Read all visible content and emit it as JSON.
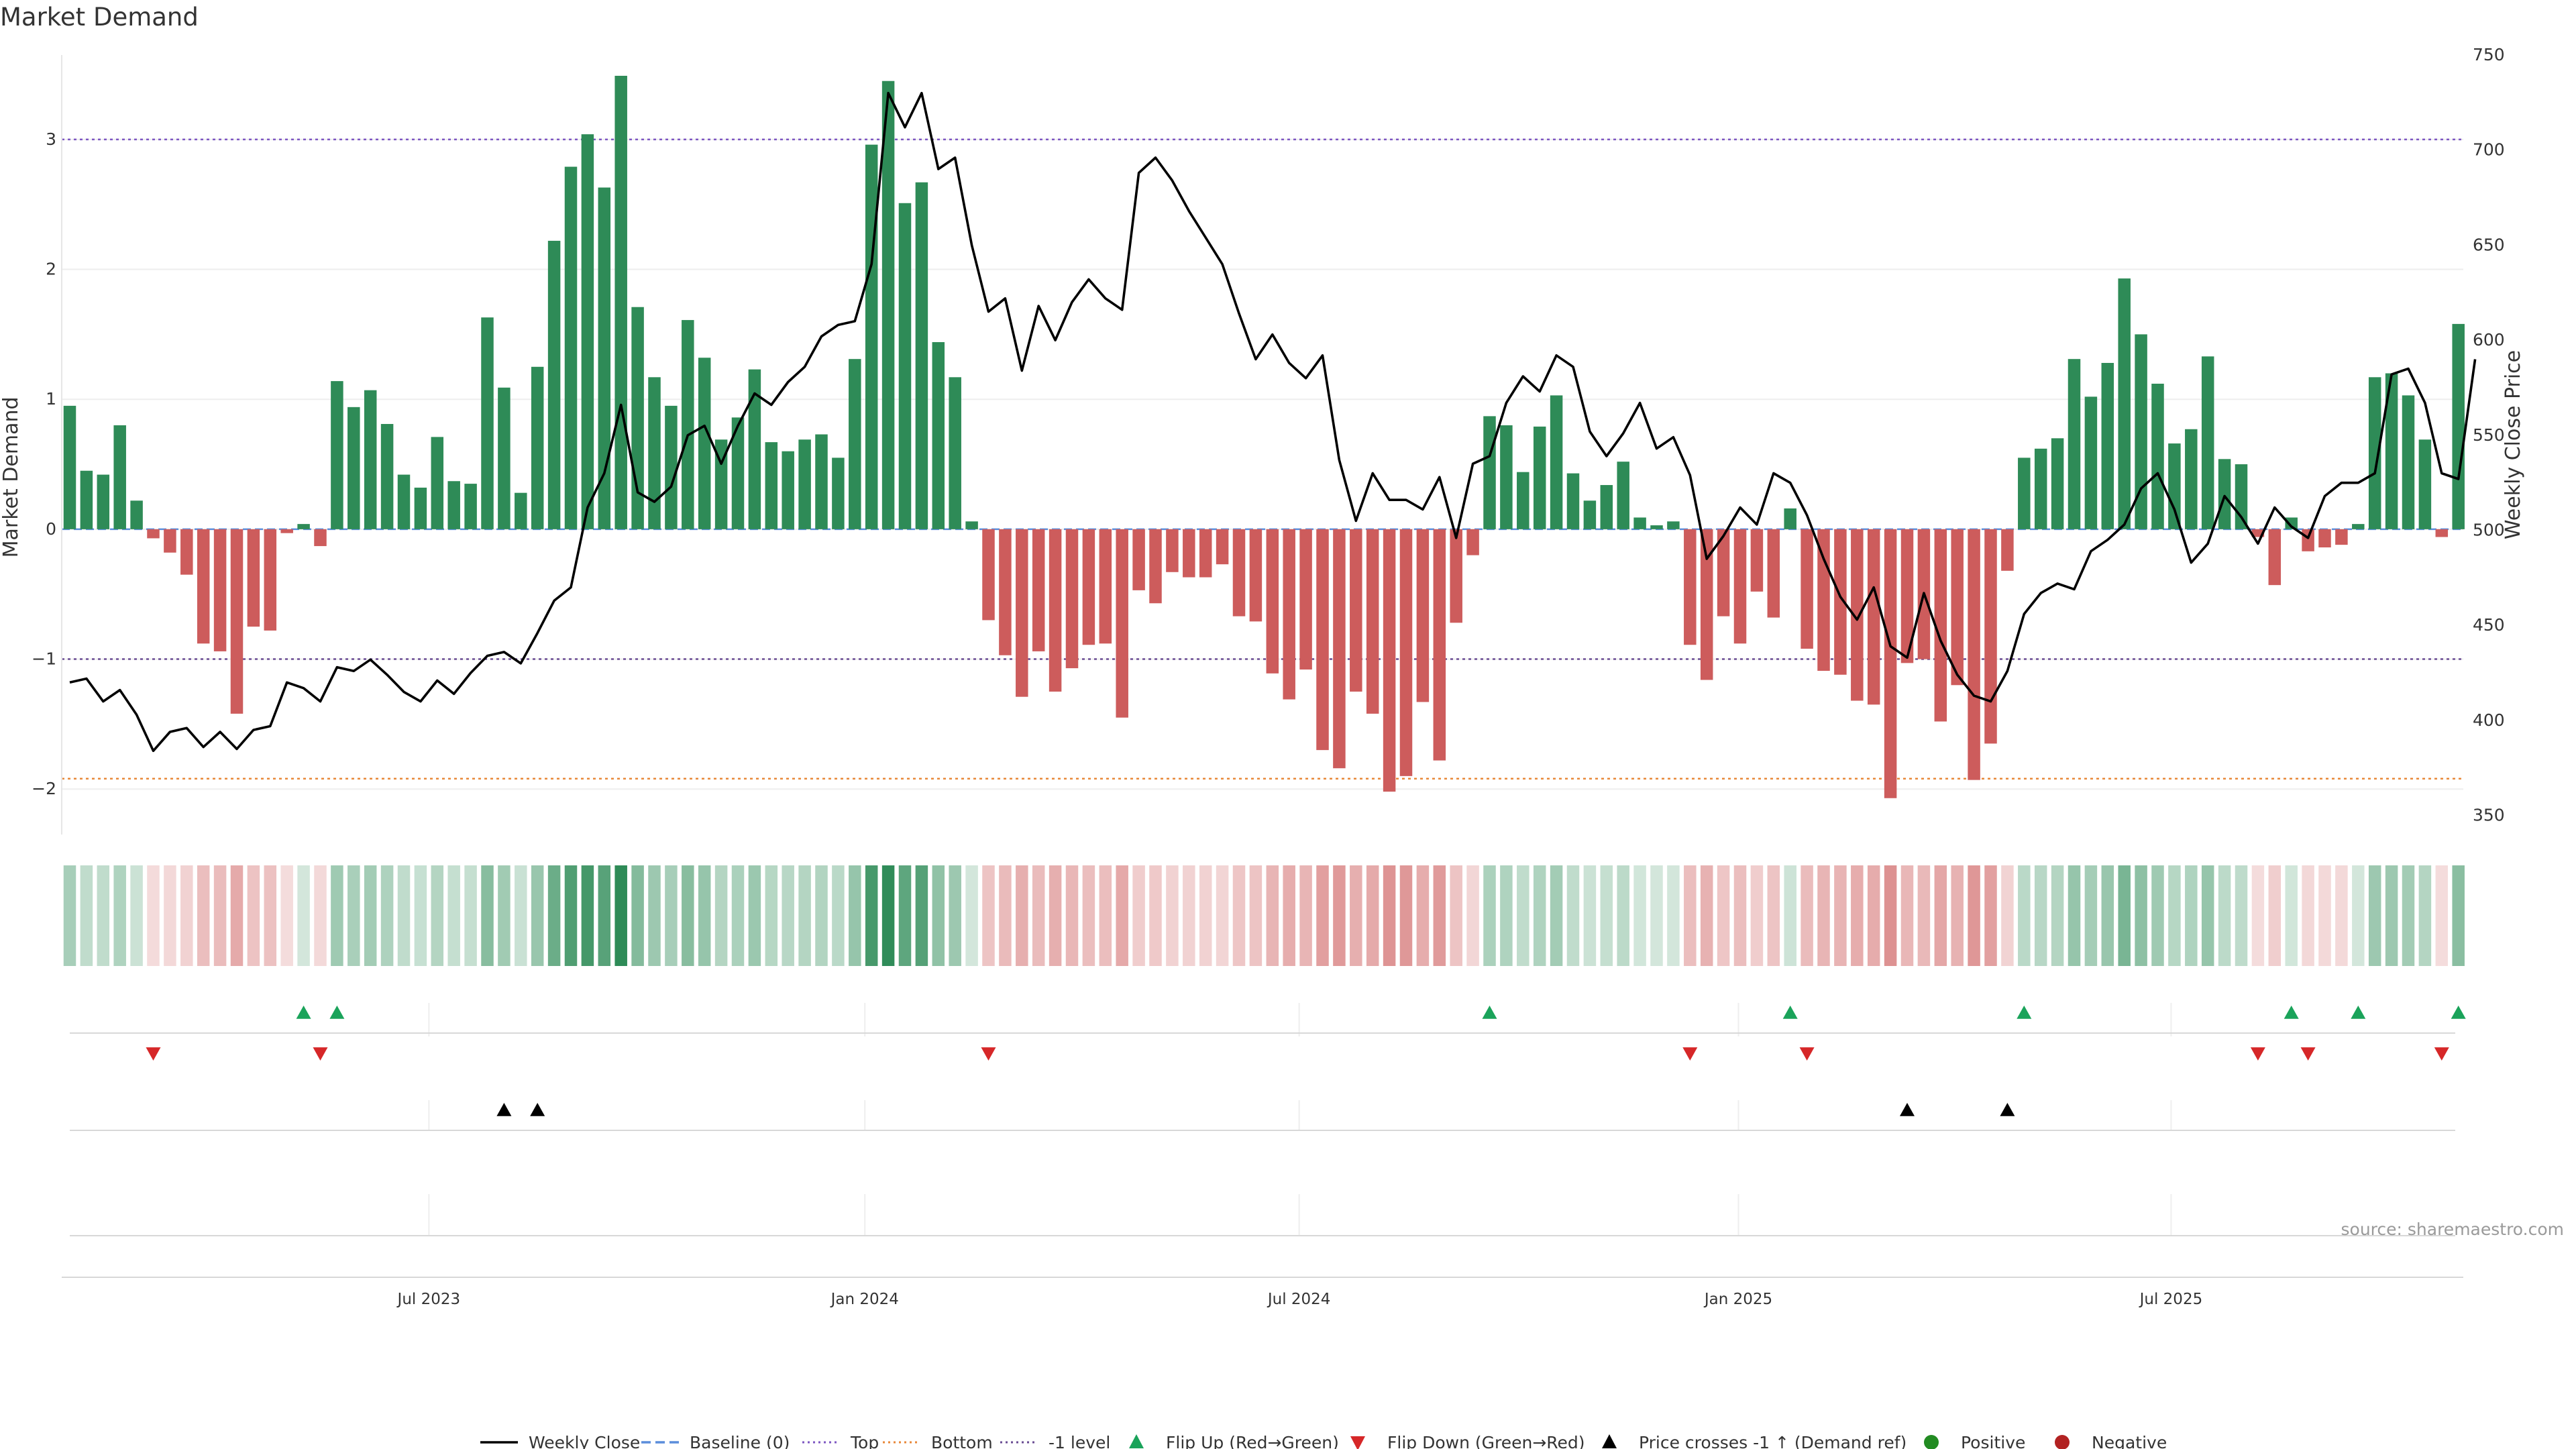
{
  "title": "Market Demand",
  "source": "source: sharemaestro.com",
  "colors": {
    "positive": "#2e8b57",
    "negative": "#cd5c5c",
    "price": "#000000",
    "top": "#7e57c2",
    "bottom": "#e8893a",
    "minus1": "#6a4c93",
    "baseline": "#5b8ddb",
    "flip_up": "#1aa35a",
    "flip_down": "#d62728",
    "cross": "#000000",
    "pos_dot": "#228b22",
    "neg_dot": "#b22222"
  },
  "chart_data": {
    "type": "bar+line",
    "title": "Market Demand",
    "ylabel_left": "Market Demand",
    "ylabel_right": "Weekly Close Price",
    "ylim_left": [
      -2.35,
      3.65
    ],
    "ylim_right": [
      340,
      750
    ],
    "yticks_left": [
      {
        "v": 3,
        "label": "3"
      },
      {
        "v": 2,
        "label": "2"
      },
      {
        "v": 1,
        "label": "1"
      },
      {
        "v": 0,
        "label": "0"
      },
      {
        "v": -1,
        "label": "−1"
      },
      {
        "v": -2,
        "label": "−2"
      }
    ],
    "yticks_right": [
      "350",
      "400",
      "450",
      "500",
      "550",
      "600",
      "650",
      "700",
      "750"
    ],
    "xticks": [
      {
        "i": 21.5,
        "label": "Jul 2023"
      },
      {
        "i": 47.6,
        "label": "Jan 2024"
      },
      {
        "i": 73.6,
        "label": "Jul 2024"
      },
      {
        "i": 99.9,
        "label": "Jan 2025"
      },
      {
        "i": 125.8,
        "label": "Jul 2025"
      }
    ],
    "levels": {
      "top": 3.0,
      "bottom": -1.92,
      "minus_one": -1.0,
      "baseline": 0
    },
    "demand": [
      0.95,
      0.45,
      0.42,
      0.8,
      0.22,
      -0.07,
      -0.18,
      -0.35,
      -0.88,
      -0.94,
      -1.42,
      -0.75,
      -0.78,
      -0.03,
      0.04,
      -0.13,
      1.14,
      0.94,
      1.07,
      0.81,
      0.42,
      0.32,
      0.71,
      0.37,
      0.35,
      1.63,
      1.09,
      0.28,
      1.25,
      2.22,
      2.79,
      3.04,
      2.63,
      3.49,
      1.71,
      1.17,
      0.95,
      1.61,
      1.32,
      0.69,
      0.86,
      1.23,
      0.67,
      0.6,
      0.69,
      0.73,
      0.55,
      1.31,
      2.96,
      3.45,
      2.51,
      2.67,
      1.44,
      1.17,
      0.06,
      -0.7,
      -0.97,
      -1.29,
      -0.94,
      -1.25,
      -1.07,
      -0.89,
      -0.88,
      -1.45,
      -0.47,
      -0.57,
      -0.33,
      -0.37,
      -0.37,
      -0.27,
      -0.67,
      -0.71,
      -1.11,
      -1.31,
      -1.08,
      -1.7,
      -1.84,
      -1.25,
      -1.42,
      -2.02,
      -1.9,
      -1.33,
      -1.78,
      -0.72,
      -0.2,
      0.87,
      0.8,
      0.44,
      0.79,
      1.03,
      0.43,
      0.22,
      0.34,
      0.52,
      0.09,
      0.03,
      0.06,
      -0.89,
      -1.16,
      -0.67,
      -0.88,
      -0.48,
      -0.68,
      0.16,
      -0.92,
      -1.09,
      -1.12,
      -1.32,
      -1.35,
      -2.07,
      -1.03,
      -1.0,
      -1.48,
      -1.2,
      -1.93,
      -1.65,
      -0.32,
      0.55,
      0.62,
      0.7,
      1.31,
      1.02,
      1.28,
      1.93,
      1.5,
      1.12,
      0.66,
      0.77,
      1.33,
      0.54,
      0.5,
      -0.06,
      -0.43,
      0.09,
      -0.17,
      -0.14,
      -0.12,
      0.04,
      1.17,
      1.2,
      1.03,
      0.69,
      -0.06,
      1.58
    ],
    "price": [
      [
        0,
        420
      ],
      [
        1,
        422
      ],
      [
        2,
        410
      ],
      [
        3,
        416
      ],
      [
        4,
        403
      ],
      [
        5,
        384
      ],
      [
        6,
        394
      ],
      [
        7,
        396
      ],
      [
        8,
        386
      ],
      [
        9,
        394
      ],
      [
        10,
        385
      ],
      [
        11,
        395
      ],
      [
        12,
        397
      ],
      [
        13,
        420
      ],
      [
        14,
        417
      ],
      [
        15,
        410
      ],
      [
        16,
        428
      ],
      [
        17,
        426
      ],
      [
        18,
        432
      ],
      [
        19,
        424
      ],
      [
        20,
        415
      ],
      [
        21,
        410
      ],
      [
        22,
        421
      ],
      [
        23,
        414
      ],
      [
        24,
        425
      ],
      [
        25,
        434
      ],
      [
        26,
        436
      ],
      [
        27,
        430
      ],
      [
        28,
        446
      ],
      [
        29,
        463
      ],
      [
        30,
        470
      ],
      [
        31,
        512
      ],
      [
        32,
        530
      ],
      [
        33,
        566
      ],
      [
        34,
        520
      ],
      [
        35,
        515
      ],
      [
        36,
        523
      ],
      [
        37,
        550
      ],
      [
        38,
        555
      ],
      [
        39,
        535
      ],
      [
        40,
        555
      ],
      [
        41,
        572
      ],
      [
        42,
        566
      ],
      [
        43,
        578
      ],
      [
        44,
        586
      ],
      [
        45,
        602
      ],
      [
        46,
        608
      ],
      [
        47,
        610
      ],
      [
        48,
        640
      ],
      [
        49,
        730
      ],
      [
        50,
        712
      ],
      [
        51,
        730
      ],
      [
        52,
        690
      ],
      [
        53,
        696
      ],
      [
        54,
        650
      ],
      [
        55,
        615
      ],
      [
        56,
        622
      ],
      [
        57,
        584
      ],
      [
        58,
        618
      ],
      [
        59,
        600
      ],
      [
        60,
        620
      ],
      [
        61,
        632
      ],
      [
        62,
        622
      ],
      [
        63,
        616
      ],
      [
        64,
        688
      ],
      [
        65,
        696
      ],
      [
        66,
        684
      ],
      [
        67,
        668
      ],
      [
        68,
        654
      ],
      [
        69,
        640
      ],
      [
        70,
        614
      ],
      [
        71,
        590
      ],
      [
        72,
        603
      ],
      [
        73,
        588
      ],
      [
        74,
        580
      ],
      [
        75,
        592
      ],
      [
        76,
        537
      ],
      [
        77,
        505
      ],
      [
        78,
        530
      ],
      [
        79,
        516
      ],
      [
        80,
        516
      ],
      [
        81,
        511
      ],
      [
        82,
        528
      ],
      [
        83,
        496
      ],
      [
        84,
        535
      ],
      [
        85,
        539
      ],
      [
        86,
        567
      ],
      [
        87,
        581
      ],
      [
        88,
        573
      ],
      [
        89,
        592
      ],
      [
        90,
        586
      ],
      [
        91,
        552
      ],
      [
        92,
        539
      ],
      [
        93,
        551
      ],
      [
        94,
        567
      ],
      [
        95,
        543
      ],
      [
        96,
        549
      ],
      [
        97,
        529
      ],
      [
        98,
        485
      ],
      [
        99,
        497
      ],
      [
        100,
        512
      ],
      [
        101,
        503
      ],
      [
        102,
        530
      ],
      [
        103,
        525
      ],
      [
        104,
        508
      ],
      [
        105,
        485
      ],
      [
        106,
        465
      ],
      [
        107,
        453
      ],
      [
        108,
        470
      ],
      [
        109,
        439
      ],
      [
        110,
        433
      ],
      [
        111,
        467
      ],
      [
        112,
        442
      ],
      [
        113,
        424
      ],
      [
        114,
        413
      ],
      [
        115,
        410
      ],
      [
        116,
        426
      ],
      [
        117,
        456
      ],
      [
        118,
        467
      ],
      [
        119,
        472
      ],
      [
        120,
        469
      ],
      [
        121,
        489
      ],
      [
        122,
        495
      ],
      [
        123,
        503
      ],
      [
        124,
        522
      ],
      [
        125,
        530
      ],
      [
        126,
        511
      ],
      [
        127,
        483
      ],
      [
        128,
        493
      ],
      [
        129,
        518
      ],
      [
        130,
        507
      ],
      [
        131,
        493
      ],
      [
        132,
        512
      ],
      [
        133,
        502
      ],
      [
        134,
        496
      ],
      [
        135,
        518
      ],
      [
        136,
        525
      ],
      [
        137,
        525
      ],
      [
        138,
        530
      ],
      [
        139,
        582
      ],
      [
        140,
        585
      ],
      [
        141,
        567
      ],
      [
        142,
        530
      ],
      [
        143,
        527
      ],
      [
        144,
        590
      ]
    ],
    "flip_up": [
      14,
      16,
      85,
      103,
      117,
      133,
      137,
      143
    ],
    "flip_down": [
      5,
      15,
      55,
      97,
      104,
      131,
      134,
      142
    ],
    "price_cross_up": [
      26,
      28,
      110,
      116
    ]
  },
  "legend": [
    {
      "kind": "line",
      "label": "Weekly Close"
    },
    {
      "kind": "dash",
      "label": "Baseline (0)"
    },
    {
      "kind": "dot-purple",
      "label": "Top"
    },
    {
      "kind": "dot-orange",
      "label": "Bottom"
    },
    {
      "kind": "dot-purple2",
      "label": "-1 level"
    },
    {
      "kind": "tri-up-green",
      "label": "Flip Up (Red→Green)"
    },
    {
      "kind": "tri-down-red",
      "label": "Flip Down (Green→Red)"
    },
    {
      "kind": "tri-up-black",
      "label": "Price crosses -1 ↑ (Demand ref)"
    },
    {
      "kind": "dot-green",
      "label": "Positive"
    },
    {
      "kind": "dot-red",
      "label": "Negative"
    }
  ]
}
